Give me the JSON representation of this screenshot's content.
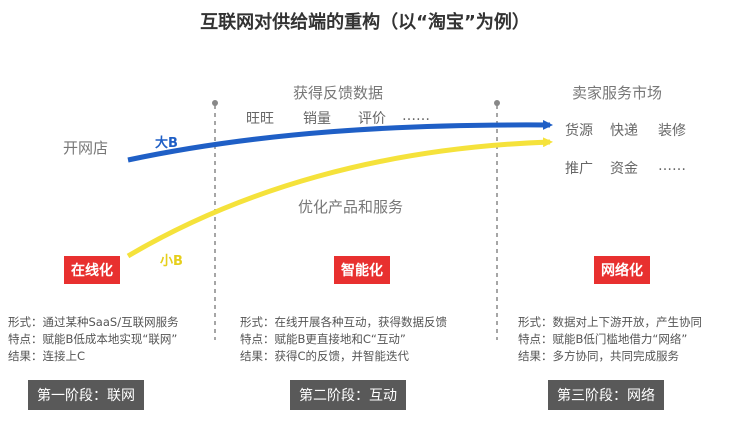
{
  "title": "互联网对供给端的重构（以“淘宝”为例）",
  "top_labels": {
    "feedback": "获得反馈数据",
    "seller_market": "卖家服务市场"
  },
  "feedback_items": [
    "旺旺",
    "销量",
    "评价",
    "……"
  ],
  "market_row1": [
    "货源",
    "快递",
    "装修"
  ],
  "market_row2": [
    "推广",
    "资金",
    "……"
  ],
  "open_shop": "开网店",
  "optimize": "优化产品和服务",
  "arrow_big_b": "大B",
  "arrow_small_b": "小B",
  "colors": {
    "big_b": "#1f5fc6",
    "small_b": "#f5e23b",
    "tag": "#e8302f",
    "stage": "#595959"
  },
  "phases": [
    {
      "tag": "在线化",
      "desc": [
        "形式：通过某种SaaS/互联网服务",
        "特点：赋能B低成本地实现“联网”",
        "结果：连接上C"
      ],
      "stage": "第一阶段：联网"
    },
    {
      "tag": "智能化",
      "desc": [
        "形式：在线开展各种互动，获得数据反馈",
        "特点：赋能B更直接地和C“互动”",
        "结果：获得C的反馈，并智能迭代"
      ],
      "stage": "第二阶段：互动"
    },
    {
      "tag": "网络化",
      "desc": [
        "形式：数据对上下游开放，产生协同",
        "特点：赋能B低门槛地借力“网络”",
        "结果：多方协同，共同完成服务"
      ],
      "stage": "第三阶段：网络"
    }
  ]
}
